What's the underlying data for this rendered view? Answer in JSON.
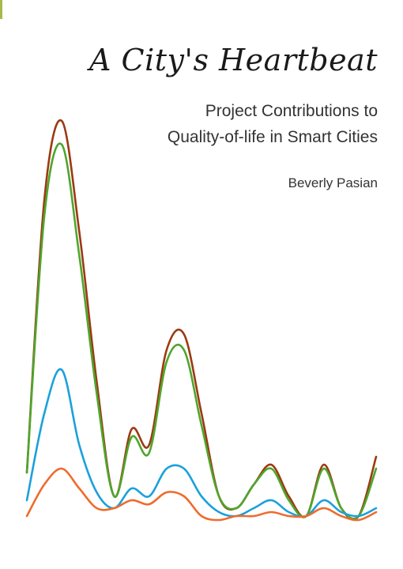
{
  "cover": {
    "title": "A City's Heartbeat",
    "subtitle_line1": "Project Contributions to",
    "subtitle_line2": "Quality-of-life in Smart Cities",
    "author": "Beverly Pasian"
  },
  "colors": {
    "accent_mark": "#a8b84a",
    "line_brown": "#9b3a12",
    "line_green": "#4ea62c",
    "line_blue": "#1ba0dc",
    "line_orange": "#ee6b2d"
  },
  "chart_data": {
    "type": "line",
    "title": "",
    "xlabel": "",
    "ylabel": "",
    "ylim": [
      0,
      100
    ],
    "grid": false,
    "legend": "none",
    "x": [
      0,
      1,
      2,
      3,
      4,
      5,
      6,
      7,
      8,
      9,
      10,
      11,
      12,
      13,
      14,
      15,
      16,
      17,
      18,
      19,
      20
    ],
    "series": [
      {
        "color": "#9b3a12",
        "values": [
          11,
          80,
          100,
          72,
          34,
          5,
          22,
          18,
          42,
          46,
          26,
          5,
          2,
          8,
          13,
          5,
          0,
          13,
          2,
          0,
          15
        ]
      },
      {
        "color": "#4ea62c",
        "values": [
          11,
          76,
          94,
          66,
          31,
          5,
          20,
          16,
          39,
          42,
          23,
          5,
          2,
          8,
          12,
          4,
          0,
          12,
          2,
          0,
          12
        ]
      },
      {
        "color": "#1ba0dc",
        "values": [
          4,
          26,
          37,
          18,
          6,
          2,
          7,
          5,
          12,
          12,
          5,
          1,
          0,
          2,
          4,
          1,
          0,
          4,
          1,
          0,
          2
        ]
      },
      {
        "color": "#ee6b2d",
        "values": [
          0,
          8,
          12,
          7,
          2,
          2,
          4,
          3,
          6,
          5,
          0,
          -1,
          0,
          0,
          1,
          0,
          0,
          2,
          0,
          -1,
          1
        ]
      }
    ]
  }
}
